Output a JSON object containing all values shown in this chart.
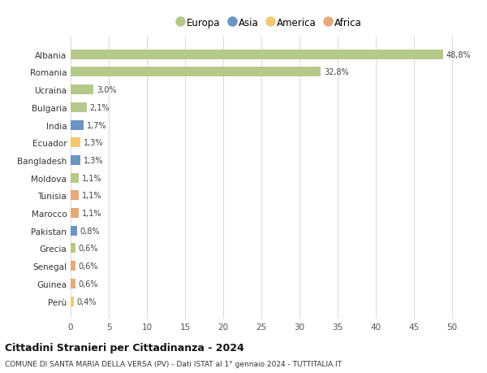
{
  "countries": [
    "Albania",
    "Romania",
    "Ucraina",
    "Bulgaria",
    "India",
    "Ecuador",
    "Bangladesh",
    "Moldova",
    "Tunisia",
    "Marocco",
    "Pakistan",
    "Grecia",
    "Senegal",
    "Guinea",
    "Perù"
  ],
  "values": [
    48.8,
    32.8,
    3.0,
    2.1,
    1.7,
    1.3,
    1.3,
    1.1,
    1.1,
    1.1,
    0.8,
    0.6,
    0.6,
    0.6,
    0.4
  ],
  "labels": [
    "48,8%",
    "32,8%",
    "3,0%",
    "2,1%",
    "1,7%",
    "1,3%",
    "1,3%",
    "1,1%",
    "1,1%",
    "1,1%",
    "0,8%",
    "0,6%",
    "0,6%",
    "0,6%",
    "0,4%"
  ],
  "continents": [
    "Europa",
    "Europa",
    "Europa",
    "Europa",
    "Asia",
    "America",
    "Asia",
    "Europa",
    "Africa",
    "Africa",
    "Asia",
    "Europa",
    "Africa",
    "Africa",
    "America"
  ],
  "continent_colors": {
    "Europa": "#b5c98a",
    "Asia": "#6b93c4",
    "America": "#f2c96e",
    "Africa": "#e8a878"
  },
  "legend_order": [
    "Europa",
    "Asia",
    "America",
    "Africa"
  ],
  "title_main": "Cittadini Stranieri per Cittadinanza - 2024",
  "title_sub": "COMUNE DI SANTA MARIA DELLA VERSA (PV) - Dati ISTAT al 1° gennaio 2024 - TUTTITALIA.IT",
  "xlim": [
    0,
    52
  ],
  "xticks": [
    0,
    5,
    10,
    15,
    20,
    25,
    30,
    35,
    40,
    45,
    50
  ],
  "background_color": "#ffffff",
  "grid_color": "#d8d8d8",
  "bar_alpha": 1.0
}
